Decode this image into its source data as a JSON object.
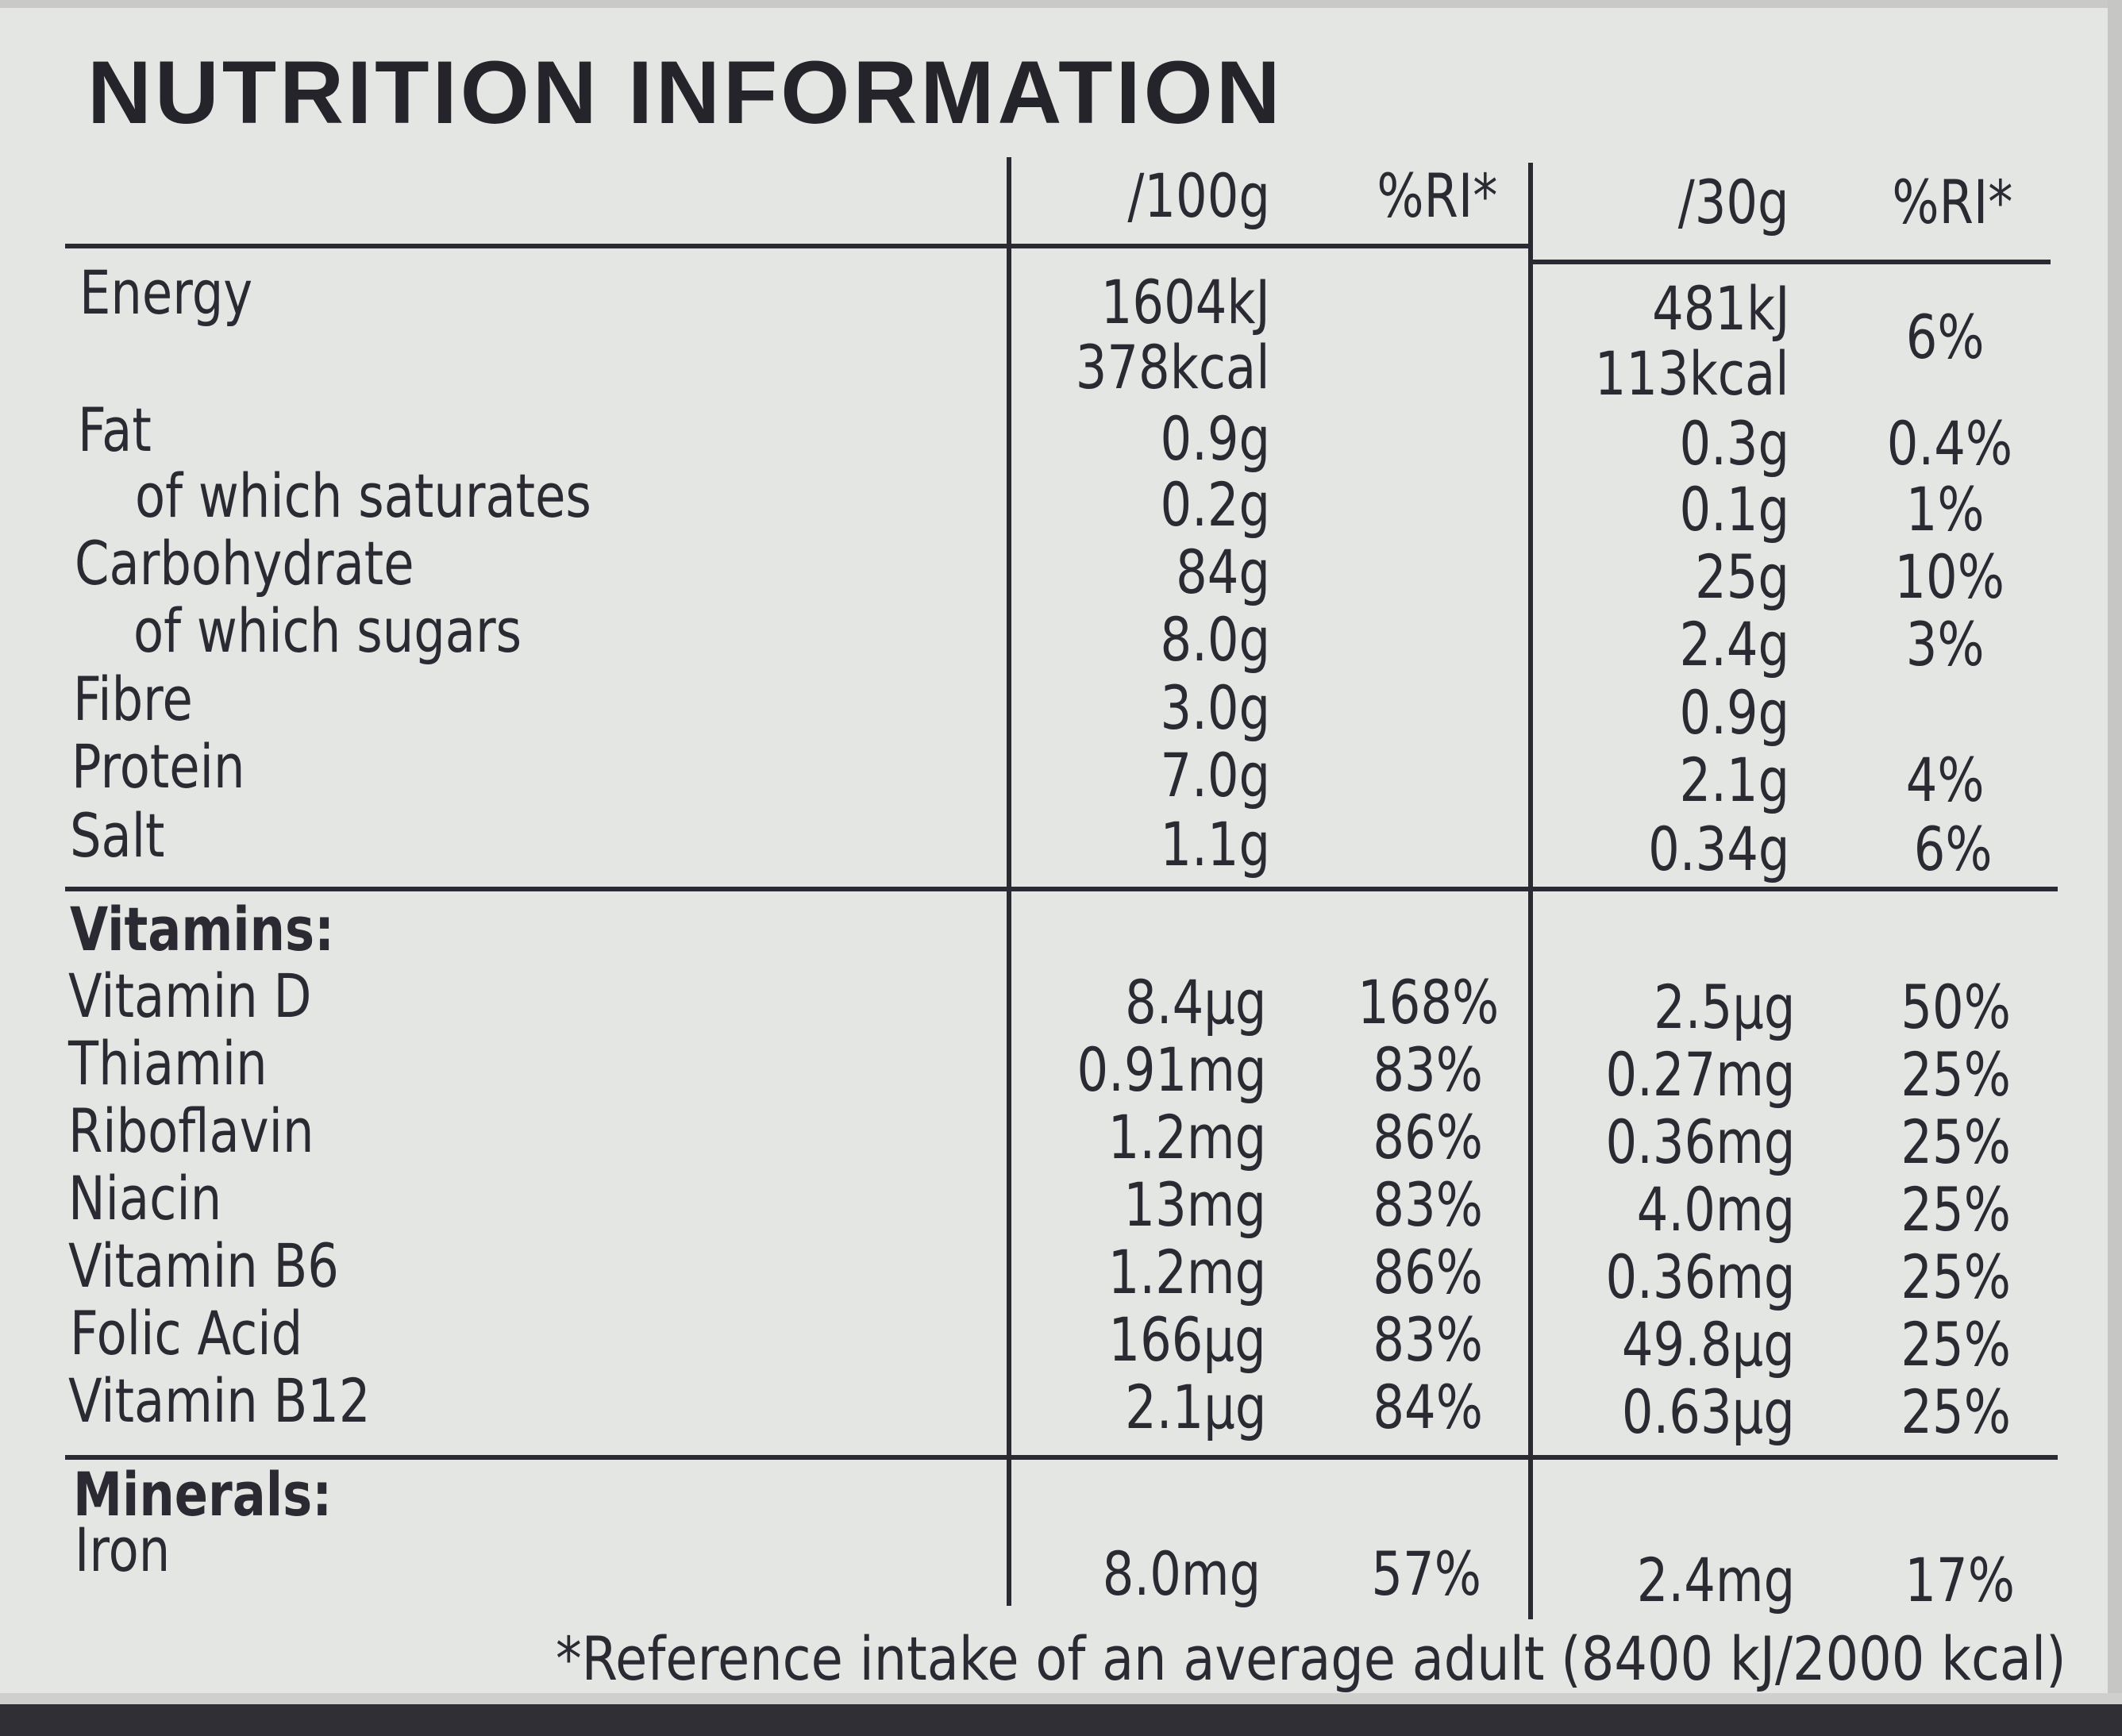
{
  "title": "NUTRITION INFORMATION",
  "headers": {
    "per100": "/100g",
    "ri100": "%RI*",
    "per30": "/30g",
    "ri30": "%RI*"
  },
  "energy": {
    "label": "Energy",
    "per100_kj": "1604kJ",
    "per100_kcal": "378kcal",
    "per30_kj": "481kJ",
    "per30_kcal": "113kcal",
    "ri30": "6%"
  },
  "nutrients": [
    {
      "label": "Fat",
      "per100": "0.9g",
      "per30": "0.3g",
      "ri30": "0.4%"
    },
    {
      "label": "of which saturates",
      "per100": "0.2g",
      "per30": "0.1g",
      "ri30": "1%"
    },
    {
      "label": "Carbohydrate",
      "per100": "84g",
      "per30": "25g",
      "ri30": "10%"
    },
    {
      "label": "of which sugars",
      "per100": "8.0g",
      "per30": "2.4g",
      "ri30": "3%"
    },
    {
      "label": "Fibre",
      "per100": "3.0g",
      "per30": "0.9g",
      "ri30": ""
    },
    {
      "label": "Protein",
      "per100": "7.0g",
      "per30": "2.1g",
      "ri30": "4%"
    },
    {
      "label": "Salt",
      "per100": "1.1g",
      "per30": "0.34g",
      "ri30": "6%"
    }
  ],
  "vitamins": {
    "heading": "Vitamins:",
    "rows": [
      {
        "label": "Vitamin D",
        "per100": "8.4µg",
        "ri100": "168%",
        "per30": "2.5µg",
        "ri30": "50%"
      },
      {
        "label": "Thiamin",
        "per100": "0.91mg",
        "ri100": "83%",
        "per30": "0.27mg",
        "ri30": "25%"
      },
      {
        "label": "Riboflavin",
        "per100": "1.2mg",
        "ri100": "86%",
        "per30": "0.36mg",
        "ri30": "25%"
      },
      {
        "label": "Niacin",
        "per100": "13mg",
        "ri100": "83%",
        "per30": "4.0mg",
        "ri30": "25%"
      },
      {
        "label": "Vitamin B6",
        "per100": "1.2mg",
        "ri100": "86%",
        "per30": "0.36mg",
        "ri30": "25%"
      },
      {
        "label": "Folic Acid",
        "per100": "166µg",
        "ri100": "83%",
        "per30": "49.8µg",
        "ri30": "25%"
      },
      {
        "label": "Vitamin B12",
        "per100": "2.1µg",
        "ri100": "84%",
        "per30": "0.63µg",
        "ri30": "25%"
      }
    ]
  },
  "minerals": {
    "heading": "Minerals:",
    "rows": [
      {
        "label": "Iron",
        "per100": "8.0mg",
        "ri100": "57%",
        "per30": "2.4mg",
        "ri30": "17%"
      }
    ]
  },
  "footnote": "*Reference intake of an average adult (8400 kJ/2000 kcal)"
}
